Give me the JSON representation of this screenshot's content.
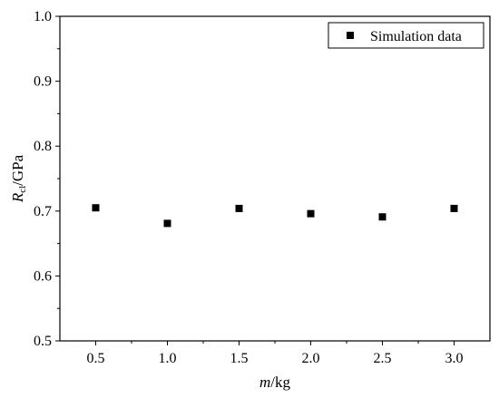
{
  "chart_data": {
    "type": "scatter",
    "title": "",
    "xlabel": {
      "var": "m",
      "unit": "/kg"
    },
    "ylabel": {
      "var": "R",
      "sub": "cl",
      "unit": "/GPa"
    },
    "xlim": [
      0.25,
      3.25
    ],
    "ylim": [
      0.5,
      1.0
    ],
    "xticks": [
      "0.5",
      "1.0",
      "1.5",
      "2.0",
      "2.5",
      "3.0"
    ],
    "yticks": [
      "0.5",
      "0.6",
      "0.7",
      "0.8",
      "0.9",
      "1.0"
    ],
    "grid": false,
    "legend_position": "top-right",
    "series": [
      {
        "name": "Simulation data",
        "marker": "square",
        "color": "#000000",
        "x": [
          0.5,
          1.0,
          1.5,
          2.0,
          2.5,
          3.0
        ],
        "y": [
          0.705,
          0.681,
          0.704,
          0.696,
          0.691,
          0.704
        ]
      }
    ]
  }
}
